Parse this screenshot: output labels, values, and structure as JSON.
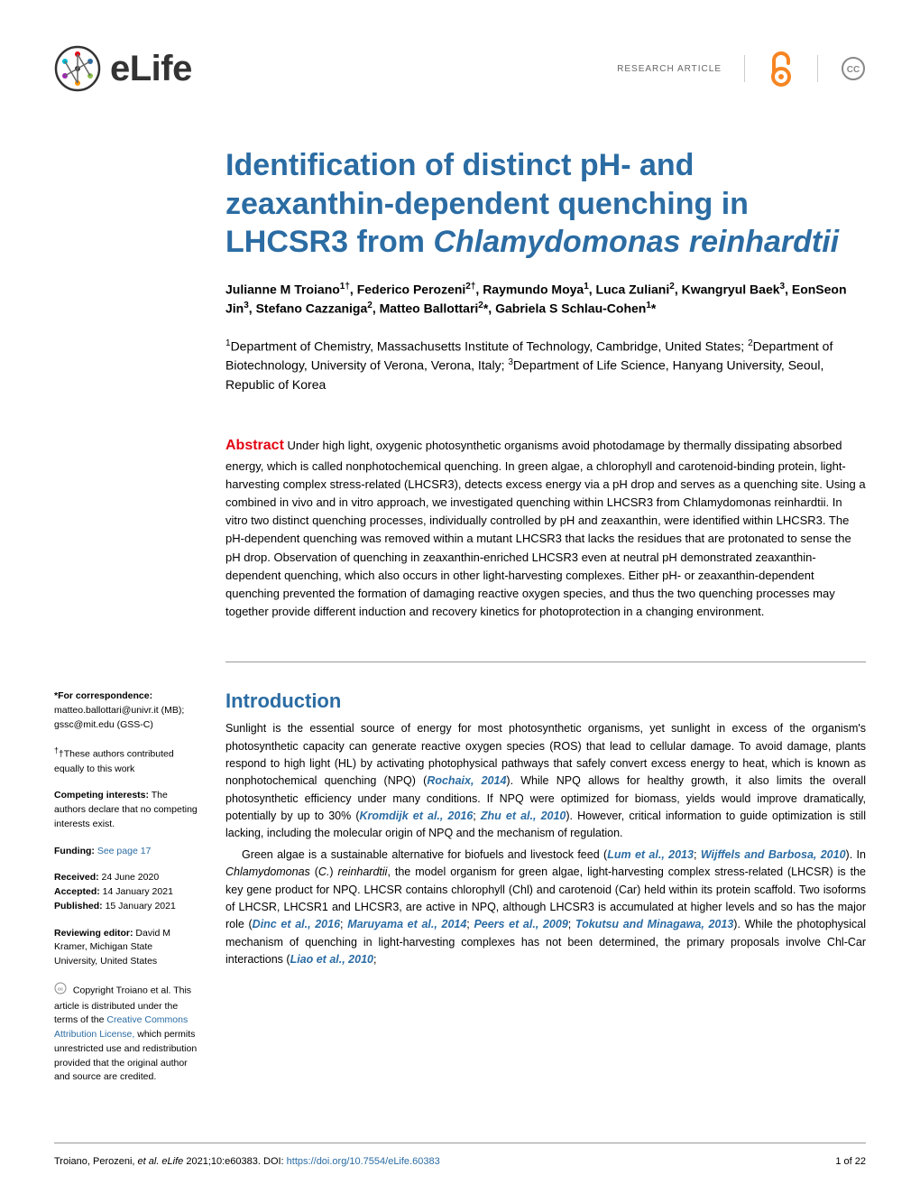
{
  "header": {
    "brand": "eLife",
    "article_type": "RESEARCH ARTICLE"
  },
  "title_parts": {
    "pre": "Identification of distinct pH- and zeaxanthin-dependent quenching in LHCSR3 from ",
    "italic": "Chlamydomonas reinhardtii"
  },
  "authors_html": "Julianne M Troiano<sup>1†</sup>, Federico Perozeni<sup>2†</sup>, Raymundo Moya<sup>1</sup>, Luca Zuliani<sup>2</sup>, Kwangryul Baek<sup>3</sup>, EonSeon Jin<sup>3</sup>, Stefano Cazzaniga<sup>2</sup>, Matteo Ballottari<sup>2</sup>*, Gabriela S Schlau-Cohen<sup>1</sup>*",
  "affiliations_html": "<sup>1</sup>Department of Chemistry, Massachusetts Institute of Technology, Cambridge, United States; <sup>2</sup>Department of Biotechnology, University of Verona, Verona, Italy; <sup>3</sup>Department of Life Science, Hanyang University, Seoul, Republic of Korea",
  "abstract": {
    "heading": "Abstract",
    "text": " Under high light, oxygenic photosynthetic organisms avoid photodamage by thermally dissipating absorbed energy, which is called nonphotochemical quenching. In green algae, a chlorophyll and carotenoid-binding protein, light-harvesting complex stress-related (LHCSR3), detects excess energy via a pH drop and serves as a quenching site. Using a combined in vivo and in vitro approach, we investigated quenching within LHCSR3 from Chlamydomonas reinhardtii. In vitro two distinct quenching processes, individually controlled by pH and zeaxanthin, were identified within LHCSR3. The pH-dependent quenching was removed within a mutant LHCSR3 that lacks the residues that are protonated to sense the pH drop. Observation of quenching in zeaxanthin-enriched LHCSR3 even at neutral pH demonstrated zeaxanthin-dependent quenching, which also occurs in other light-harvesting complexes. Either pH- or zeaxanthin-dependent quenching prevented the formation of damaging reactive oxygen species, and thus the two quenching processes may together provide different induction and recovery kinetics for photoprotection in a changing environment."
  },
  "sidebar": {
    "correspondence_label": "*For correspondence:",
    "correspondence_1": "matteo.ballottari@univr.it (MB);",
    "correspondence_2": "gssc@mit.edu (GSS-C)",
    "equal_contrib": "†These authors contributed equally to this work",
    "competing_label": "Competing interests:",
    "competing_text": " The authors declare that no competing interests exist.",
    "funding_label": "Funding:",
    "funding_link": " See page 17",
    "received_label": "Received:",
    "received_val": " 24 June 2020",
    "accepted_label": "Accepted:",
    "accepted_val": " 14 January 2021",
    "published_label": "Published:",
    "published_val": " 15 January 2021",
    "reviewing_label": "Reviewing editor:",
    "reviewing_val": "  David M Kramer, Michigan State University, United States",
    "copyright_text": " Copyright Troiano et al. This article is distributed under the terms of the ",
    "copyright_link": "Creative Commons Attribution License,",
    "copyright_text2": " which permits unrestricted use and redistribution provided that the original author and source are credited."
  },
  "intro": {
    "heading": "Introduction",
    "p1_a": "Sunlight is the essential source of energy for most photosynthetic organisms, yet sunlight in excess of the organism's photosynthetic capacity can generate reactive oxygen species (ROS) that lead to cellular damage. To avoid damage, plants respond to high light (HL) by activating photophysical pathways that safely convert excess energy to heat, which is known as nonphotochemical quenching (NPQ) (",
    "p1_ref1": "Rochaix, 2014",
    "p1_b": "). While NPQ allows for healthy growth, it also limits the overall photosynthetic efficiency under many conditions. If NPQ were optimized for biomass, yields would improve dramatically, potentially by up to 30% (",
    "p1_ref2": "Kromdijk et al., 2016",
    "p1_c": "; ",
    "p1_ref3": "Zhu et al., 2010",
    "p1_d": "). However, critical information to guide optimization is still lacking, including the molecular origin of NPQ and the mechanism of regulation.",
    "p2_a": "Green algae is a sustainable alternative for biofuels and livestock feed (",
    "p2_ref1": "Lum et al., 2013",
    "p2_b": "; ",
    "p2_ref2": "Wijffels and Barbosa, 2010",
    "p2_c": "). In ",
    "p2_ital1": "Chlamydomonas",
    "p2_d": " (",
    "p2_ital2": "C.",
    "p2_e": ") ",
    "p2_ital3": "reinhardtii",
    "p2_f": ", the model organism for green algae, light-harvesting complex stress-related (LHCSR) is the key gene product for NPQ. LHCSR contains chlorophyll (Chl) and carotenoid (Car) held within its protein scaffold. Two isoforms of LHCSR, LHCSR1 and LHCSR3, are active in NPQ, although LHCSR3 is accumulated at higher levels and so has the major role (",
    "p2_ref3": "Dinc et al., 2016",
    "p2_g": "; ",
    "p2_ref4": "Maruyama et al., 2014",
    "p2_h": "; ",
    "p2_ref5": "Peers et al., 2009",
    "p2_i": "; ",
    "p2_ref6": "Tokutsu and Minagawa, 2013",
    "p2_j": "). While the photophysical mechanism of quenching in light-harvesting complexes has not been determined, the primary proposals involve Chl-Car interactions (",
    "p2_ref7": "Liao et al., 2010",
    "p2_k": ";"
  },
  "footer": {
    "citation_pre": "Troiano, Perozeni, ",
    "citation_ital": "et al. eLife",
    "citation_post": " 2021;10:e60383. ",
    "doi_label": "DOI: ",
    "doi_link": "https://doi.org/10.7554/eLife.60383",
    "pagenum": "1 of 22"
  },
  "colors": {
    "title_blue": "#2b6ca3",
    "abstract_red": "#e30613",
    "oa_orange": "#f78522",
    "cc_gray": "#888888"
  }
}
